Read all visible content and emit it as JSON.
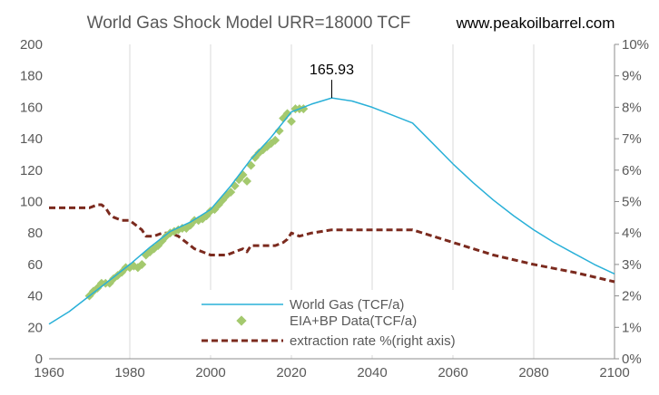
{
  "chart_data": {
    "type": "line",
    "title": "World Gas Shock Model URR=18000 TCF",
    "watermark": "www.peakoilbarrel.com",
    "annotation": {
      "text": "165.93",
      "x": 2030,
      "y": 165.93
    },
    "x_axis": {
      "range": [
        1960,
        2100
      ],
      "ticks": [
        "1960",
        "1980",
        "2000",
        "2020",
        "2040",
        "2060",
        "2080",
        "2100"
      ]
    },
    "y_axis_left": {
      "range": [
        0,
        200
      ],
      "ticks": [
        "0",
        "20",
        "40",
        "60",
        "80",
        "100",
        "120",
        "140",
        "160",
        "180",
        "200"
      ]
    },
    "y_axis_right": {
      "range": [
        0,
        10
      ],
      "unit": "%",
      "ticks": [
        "0%",
        "1%",
        "2%",
        "3%",
        "4%",
        "5%",
        "6%",
        "7%",
        "8%",
        "9%",
        "10%"
      ]
    },
    "grid": "vertical",
    "legend_position": "bottom-center",
    "colors": {
      "model": "#29B0D8",
      "data": "#A4C96E",
      "rate": "#7B2A1E",
      "grid": "#D9D9D9",
      "axis": "#8C8C8C"
    },
    "series": [
      {
        "name": "World Gas (TCF/a)",
        "axis": "left",
        "style": "line",
        "x": [
          1960,
          1965,
          1970,
          1975,
          1980,
          1985,
          1990,
          1995,
          2000,
          2005,
          2010,
          2015,
          2020,
          2025,
          2030,
          2035,
          2040,
          2045,
          2050,
          2055,
          2060,
          2065,
          2070,
          2075,
          2080,
          2085,
          2090,
          2095,
          2100
        ],
        "y": [
          22,
          30,
          40,
          50,
          60,
          71,
          81,
          87,
          95,
          110,
          127,
          141,
          157,
          162,
          165.93,
          164,
          160,
          155,
          150,
          137,
          124,
          112,
          101,
          91,
          82,
          74,
          67,
          60,
          54
        ]
      },
      {
        "name": "EIA+BP Data(TCF/a)",
        "axis": "left",
        "style": "markers",
        "x": [
          1970,
          1971,
          1972,
          1973,
          1974,
          1975,
          1976,
          1977,
          1978,
          1979,
          1980,
          1981,
          1982,
          1983,
          1984,
          1985,
          1986,
          1987,
          1988,
          1989,
          1990,
          1991,
          1992,
          1993,
          1994,
          1995,
          1996,
          1997,
          1998,
          1999,
          2000,
          2001,
          2002,
          2003,
          2004,
          2005,
          2006,
          2007,
          2008,
          2009,
          2010,
          2011,
          2012,
          2013,
          2014,
          2015,
          2016,
          2017,
          2018,
          2019,
          2020,
          2021,
          2022,
          2023
        ],
        "y": [
          40,
          43,
          45,
          48,
          48,
          48,
          51,
          53,
          55,
          58,
          58,
          59,
          58,
          60,
          66,
          68,
          70,
          72,
          75,
          78,
          80,
          81,
          82,
          83,
          83,
          85,
          88,
          88,
          89,
          91,
          94,
          95,
          98,
          101,
          104,
          106,
          110,
          114,
          117,
          113,
          123,
          128,
          131,
          133,
          135,
          137,
          139,
          145,
          153,
          156,
          151,
          159,
          159,
          159
        ]
      },
      {
        "name": "extraction rate %(right axis)",
        "axis": "right",
        "style": "dashed",
        "x": [
          1960,
          1965,
          1970,
          1972,
          1973,
          1974,
          1975,
          1976,
          1978,
          1980,
          1982,
          1983,
          1984,
          1986,
          1988,
          1990,
          1992,
          1994,
          1996,
          1998,
          2000,
          2002,
          2004,
          2006,
          2008,
          2009,
          2010,
          2012,
          2014,
          2016,
          2018,
          2019,
          2020,
          2022,
          2025,
          2030,
          2035,
          2040,
          2045,
          2050,
          2060,
          2070,
          2080,
          2090,
          2100
        ],
        "y": [
          4.8,
          4.8,
          4.8,
          4.9,
          4.9,
          4.8,
          4.6,
          4.5,
          4.4,
          4.4,
          4.2,
          4.1,
          3.9,
          3.9,
          4.0,
          4.0,
          3.9,
          3.7,
          3.5,
          3.4,
          3.3,
          3.3,
          3.3,
          3.4,
          3.5,
          3.4,
          3.6,
          3.6,
          3.6,
          3.6,
          3.7,
          3.8,
          4.0,
          3.9,
          4.0,
          4.1,
          4.1,
          4.1,
          4.1,
          4.1,
          3.7,
          3.3,
          3.0,
          2.75,
          2.45
        ]
      }
    ]
  }
}
